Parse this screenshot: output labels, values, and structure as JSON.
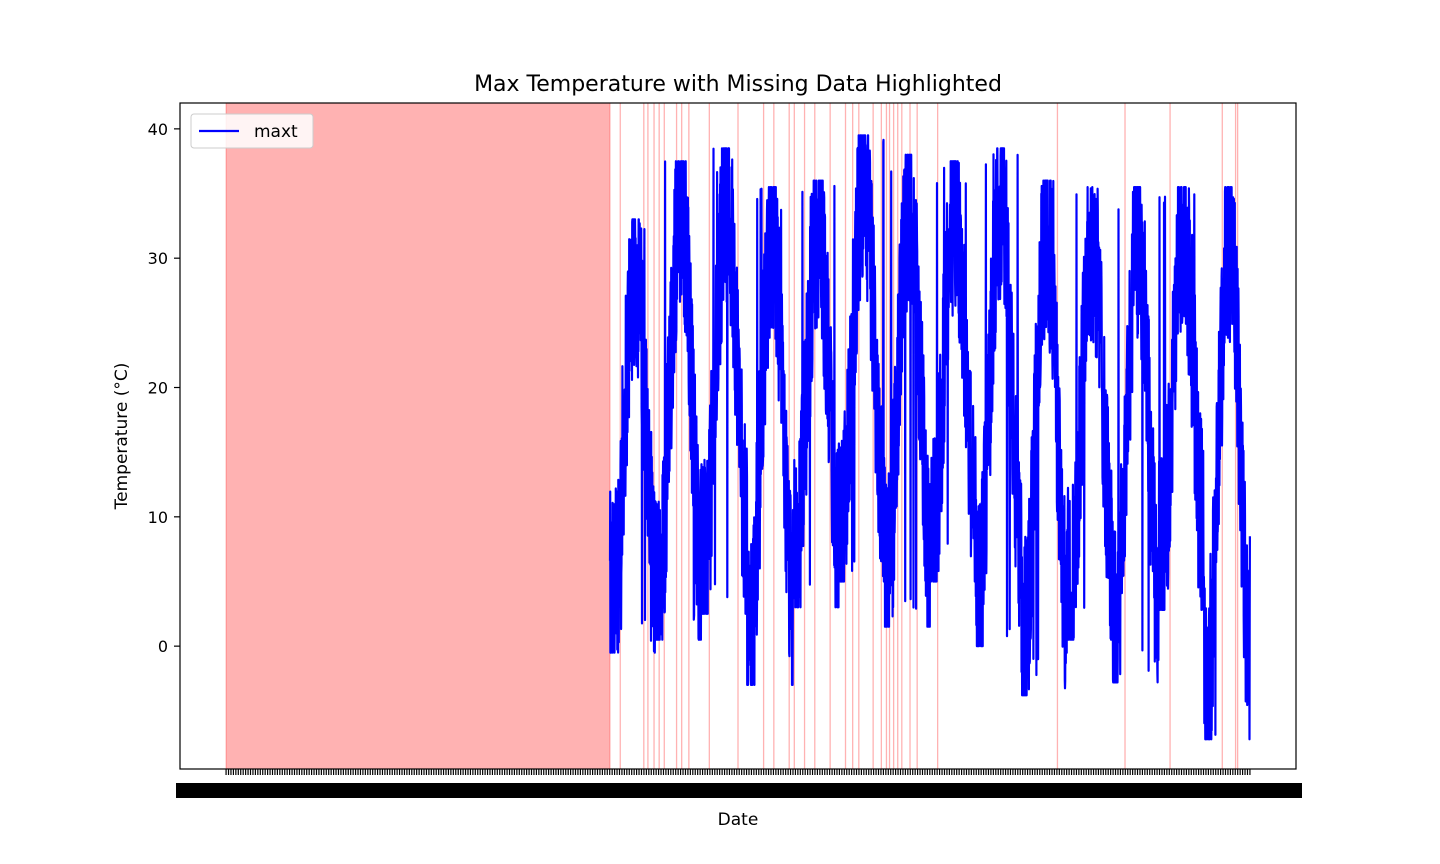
{
  "chart_data": {
    "type": "line",
    "title": "Max Temperature with Missing Data Highlighted",
    "xlabel": "Date",
    "ylabel": "Temperature (°C)",
    "ylim": [
      -9.5,
      42
    ],
    "yticks": [
      0,
      10,
      20,
      30,
      40
    ],
    "xlim": [
      -0.045,
      1.045
    ],
    "grid": false,
    "legend": {
      "placement": "top-left",
      "entries": [
        "maxt"
      ]
    },
    "series": [
      {
        "name": "maxt",
        "color": "#0000ff",
        "x_start": 0.375,
        "x_end": 1.0,
        "annual_peaks": [
          33,
          37.5,
          38.5,
          35.5,
          36,
          39.5,
          38,
          37.5,
          38.5,
          36,
          35.5,
          35.5,
          35.5,
          35.5
        ],
        "annual_troughs": [
          -0.5,
          0.5,
          2.5,
          -3,
          3,
          5,
          1.5,
          5,
          0,
          -3.8,
          0.5,
          -2.8,
          2.8,
          -7.2
        ],
        "end_value": 8.5
      }
    ],
    "missing_data": {
      "color": "#ff0000",
      "span": [
        0.0,
        0.375
      ],
      "lines": [
        0.385,
        0.408,
        0.412,
        0.418,
        0.423,
        0.428,
        0.44,
        0.445,
        0.452,
        0.472,
        0.5,
        0.525,
        0.535,
        0.55,
        0.555,
        0.565,
        0.575,
        0.59,
        0.605,
        0.612,
        0.618,
        0.632,
        0.64,
        0.645,
        0.648,
        0.652,
        0.656,
        0.66,
        0.668,
        0.675,
        0.695,
        0.812,
        0.878,
        0.922,
        0.973,
        0.986,
        0.988
      ]
    },
    "x_tick_count": 420
  }
}
